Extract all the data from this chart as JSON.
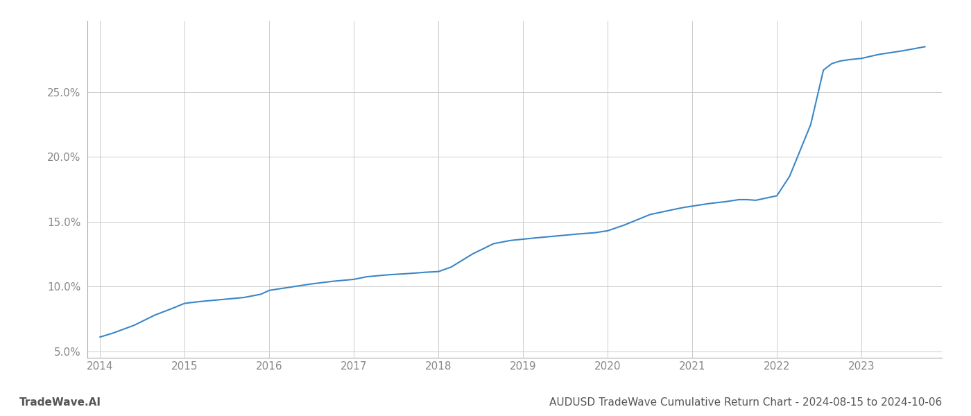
{
  "title": "AUDUSD TradeWave Cumulative Return Chart - 2024-08-15 to 2024-10-06",
  "watermark": "TradeWave.AI",
  "line_color": "#3a86c8",
  "background_color": "#ffffff",
  "grid_color": "#cccccc",
  "x_years": [
    2014,
    2015,
    2016,
    2017,
    2018,
    2019,
    2020,
    2021,
    2022,
    2023
  ],
  "x_values": [
    2014.0,
    2014.15,
    2014.4,
    2014.65,
    2014.85,
    2015.0,
    2015.2,
    2015.45,
    2015.7,
    2015.9,
    2016.0,
    2016.2,
    2016.5,
    2016.75,
    2017.0,
    2017.15,
    2017.4,
    2017.65,
    2017.85,
    2018.0,
    2018.15,
    2018.4,
    2018.65,
    2018.85,
    2019.0,
    2019.15,
    2019.4,
    2019.65,
    2019.85,
    2020.0,
    2020.2,
    2020.5,
    2020.75,
    2020.9,
    2021.0,
    2021.2,
    2021.4,
    2021.55,
    2021.65,
    2021.75,
    2022.0,
    2022.15,
    2022.4,
    2022.55,
    2022.65,
    2022.75,
    2022.85,
    2023.0,
    2023.2,
    2023.5,
    2023.75
  ],
  "y_values": [
    6.1,
    6.4,
    7.0,
    7.8,
    8.3,
    8.7,
    8.85,
    9.0,
    9.15,
    9.4,
    9.7,
    9.9,
    10.2,
    10.4,
    10.55,
    10.75,
    10.9,
    11.0,
    11.1,
    11.15,
    11.5,
    12.5,
    13.3,
    13.55,
    13.65,
    13.75,
    13.9,
    14.05,
    14.15,
    14.3,
    14.75,
    15.55,
    15.9,
    16.1,
    16.2,
    16.4,
    16.55,
    16.7,
    16.7,
    16.65,
    17.0,
    18.5,
    22.5,
    26.7,
    27.2,
    27.4,
    27.5,
    27.6,
    27.9,
    28.2,
    28.5
  ],
  "ylim": [
    4.5,
    30.5
  ],
  "yticks": [
    5.0,
    10.0,
    15.0,
    20.0,
    25.0
  ],
  "xlim": [
    2013.85,
    2023.95
  ],
  "line_width": 1.5,
  "title_fontsize": 11,
  "tick_fontsize": 11,
  "watermark_fontsize": 11,
  "spine_color": "#aaaaaa",
  "tick_color": "#888888"
}
